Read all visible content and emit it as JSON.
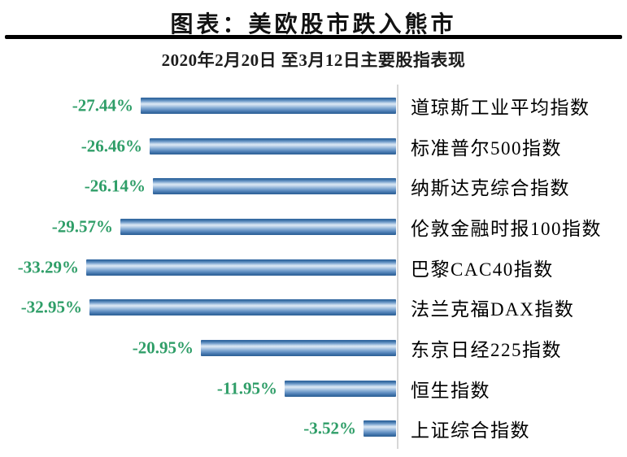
{
  "header": {
    "title": "图表：美欧股市跌入熊市",
    "subtitle": "2020年2月20日 至3月12日主要股指表现"
  },
  "colors": {
    "background": "#ffffff",
    "divider": "#000000",
    "baseline": "#d7d7d7",
    "value_label": "#2f9e68",
    "category_label": "#000000",
    "bar_main": "#4f81bd",
    "bar_dark_edge": "#2d5f95",
    "bar_highlight": "#dce8f4"
  },
  "chart_data": {
    "type": "bar",
    "orientation": "horizontal",
    "title": "图表：美欧股市跌入熊市",
    "subtitle": "2020年2月20日 至3月12日主要股指表现",
    "categories": [
      "道琼斯工业平均指数",
      "标准普尔500指数",
      "纳斯达克综合指数",
      "伦敦金融时报100指数",
      "巴黎CAC40指数",
      "法兰克福DAX指数",
      "东京日经225指数",
      "恒生指数",
      "上证综合指数"
    ],
    "values": [
      -27.44,
      -26.46,
      -26.14,
      -29.57,
      -33.29,
      -32.95,
      -20.95,
      -11.95,
      -3.52
    ],
    "value_labels": [
      "-27.44%",
      "-26.46%",
      "-26.14%",
      "-29.57%",
      "-33.29%",
      "-32.95%",
      "-20.95%",
      "-11.95%",
      "-3.52%"
    ],
    "xlabel": "",
    "ylabel": "",
    "xlim": [
      -35,
      0
    ],
    "baseline": 0,
    "grid": false,
    "legend": false,
    "value_labels_position": "left-of-bar",
    "category_labels_position": "right-of-baseline"
  }
}
